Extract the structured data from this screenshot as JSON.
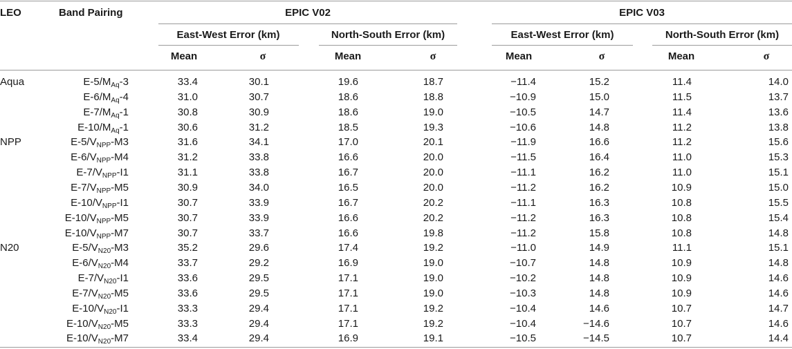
{
  "headers": {
    "leo": "LEO",
    "band_pairing": "Band Pairing",
    "epic_v02": "EPIC V02",
    "epic_v03": "EPIC V03",
    "ew_error": "East-West Error (km)",
    "ns_error": "North-South Error (km)",
    "mean": "Mean",
    "sigma": "σ"
  },
  "rows": [
    {
      "leo": "Aqua",
      "pair": {
        "pre": "E-5/M",
        "sub": "Aq",
        "post": "-3"
      },
      "values": [
        "33.4",
        "30.1",
        "19.6",
        "18.7",
        "−11.4",
        "15.2",
        "11.4",
        "14.0"
      ]
    },
    {
      "leo": "",
      "pair": {
        "pre": "E-6/M",
        "sub": "Aq",
        "post": "-4"
      },
      "values": [
        "31.0",
        "30.7",
        "18.6",
        "18.8",
        "−10.9",
        "15.0",
        "11.5",
        "13.7"
      ]
    },
    {
      "leo": "",
      "pair": {
        "pre": "E-7/M",
        "sub": "Aq",
        "post": "-1"
      },
      "values": [
        "30.8",
        "30.9",
        "18.6",
        "19.0",
        "−10.5",
        "14.7",
        "11.4",
        "13.6"
      ]
    },
    {
      "leo": "",
      "pair": {
        "pre": "E-10/M",
        "sub": "Aq",
        "post": "-1"
      },
      "values": [
        "30.6",
        "31.2",
        "18.5",
        "19.3",
        "−10.6",
        "14.8",
        "11.2",
        "13.8"
      ]
    },
    {
      "leo": "NPP",
      "pair": {
        "pre": "E-5/V",
        "sub": "NPP",
        "post": "-M3"
      },
      "values": [
        "31.6",
        "34.1",
        "17.0",
        "20.1",
        "−11.9",
        "16.6",
        "11.2",
        "15.6"
      ]
    },
    {
      "leo": "",
      "pair": {
        "pre": "E-6/V",
        "sub": "NPP",
        "post": "-M4"
      },
      "values": [
        "31.2",
        "33.8",
        "16.6",
        "20.0",
        "−11.5",
        "16.4",
        "11.0",
        "15.3"
      ]
    },
    {
      "leo": "",
      "pair": {
        "pre": "E-7/V",
        "sub": "NPP",
        "post": "-I1"
      },
      "values": [
        "31.1",
        "33.8",
        "16.7",
        "20.0",
        "−11.1",
        "16.2",
        "11.0",
        "15.1"
      ]
    },
    {
      "leo": "",
      "pair": {
        "pre": "E-7/V",
        "sub": "NPP",
        "post": "-M5"
      },
      "values": [
        "30.9",
        "34.0",
        "16.5",
        "20.0",
        "−11.2",
        "16.2",
        "10.9",
        "15.0"
      ]
    },
    {
      "leo": "",
      "pair": {
        "pre": "E-10/V",
        "sub": "NPP",
        "post": "-I1"
      },
      "values": [
        "30.7",
        "33.9",
        "16.7",
        "20.2",
        "−11.1",
        "16.3",
        "10.8",
        "15.5"
      ]
    },
    {
      "leo": "",
      "pair": {
        "pre": "E-10/V",
        "sub": "NPP",
        "post": "-M5"
      },
      "values": [
        "30.7",
        "33.9",
        "16.6",
        "20.2",
        "−11.2",
        "16.3",
        "10.8",
        "15.4"
      ]
    },
    {
      "leo": "",
      "pair": {
        "pre": "E-10/V",
        "sub": "NPP",
        "post": "-M7"
      },
      "values": [
        "30.7",
        "33.7",
        "16.6",
        "19.8",
        "−11.2",
        "15.8",
        "10.8",
        "14.8"
      ]
    },
    {
      "leo": "N20",
      "pair": {
        "pre": "E-5/V",
        "sub": "N20",
        "post": "-M3"
      },
      "values": [
        "35.2",
        "29.6",
        "17.4",
        "19.2",
        "−11.0",
        "14.9",
        "11.1",
        "15.1"
      ]
    },
    {
      "leo": "",
      "pair": {
        "pre": "E-6/V",
        "sub": "N20",
        "post": "-M4"
      },
      "values": [
        "33.7",
        "29.2",
        "16.9",
        "19.0",
        "−10.7",
        "14.8",
        "10.9",
        "14.8"
      ]
    },
    {
      "leo": "",
      "pair": {
        "pre": "E-7/V",
        "sub": "N20",
        "post": "-I1"
      },
      "values": [
        "33.6",
        "29.5",
        "17.1",
        "19.0",
        "−10.2",
        "14.8",
        "10.9",
        "14.6"
      ]
    },
    {
      "leo": "",
      "pair": {
        "pre": "E-7/V",
        "sub": "N20",
        "post": "-M5"
      },
      "values": [
        "33.6",
        "29.5",
        "17.1",
        "19.0",
        "−10.3",
        "14.8",
        "10.9",
        "14.6"
      ]
    },
    {
      "leo": "",
      "pair": {
        "pre": "E-10/V",
        "sub": "N20",
        "post": "-I1"
      },
      "values": [
        "33.3",
        "29.4",
        "17.1",
        "19.2",
        "−10.4",
        "14.6",
        "10.7",
        "14.7"
      ]
    },
    {
      "leo": "",
      "pair": {
        "pre": "E-10/V",
        "sub": "N20",
        "post": "-M5"
      },
      "values": [
        "33.3",
        "29.4",
        "17.1",
        "19.2",
        "−10.4",
        "−14.6",
        "10.7",
        "14.6"
      ]
    },
    {
      "leo": "",
      "pair": {
        "pre": "E-10/V",
        "sub": "N20",
        "post": "-M7"
      },
      "values": [
        "33.4",
        "29.4",
        "16.9",
        "19.1",
        "−10.5",
        "−14.5",
        "10.7",
        "14.4"
      ]
    }
  ]
}
